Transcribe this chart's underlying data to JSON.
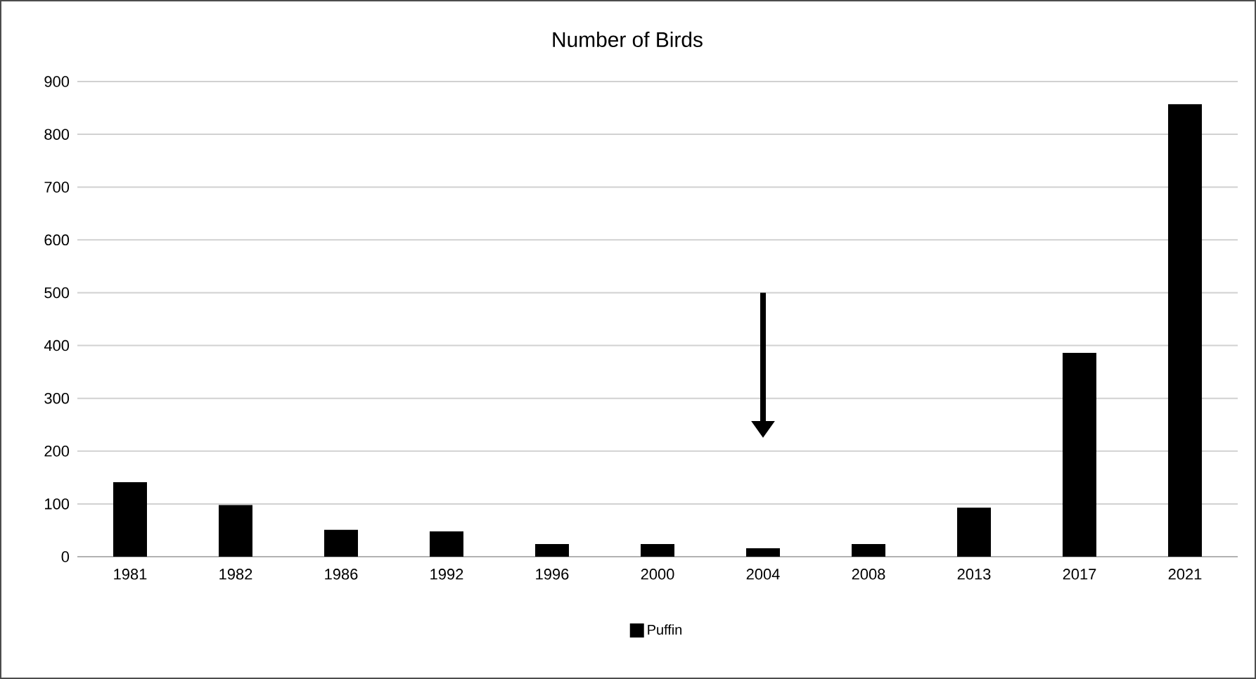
{
  "chart_data": {
    "type": "bar",
    "title": "Number of Birds",
    "categories": [
      "1981",
      "1982",
      "1986",
      "1992",
      "1996",
      "2000",
      "2004",
      "2008",
      "2013",
      "2017",
      "2021"
    ],
    "series": [
      {
        "name": "Puffin",
        "color": "#000000",
        "values": [
          141,
          98,
          51,
          48,
          24,
          24,
          16,
          24,
          93,
          386,
          857
        ]
      }
    ],
    "ylim": [
      0,
      900
    ],
    "yticks": [
      0,
      100,
      200,
      300,
      400,
      500,
      600,
      700,
      800,
      900
    ],
    "grid": "y",
    "legend": "bottom"
  }
}
